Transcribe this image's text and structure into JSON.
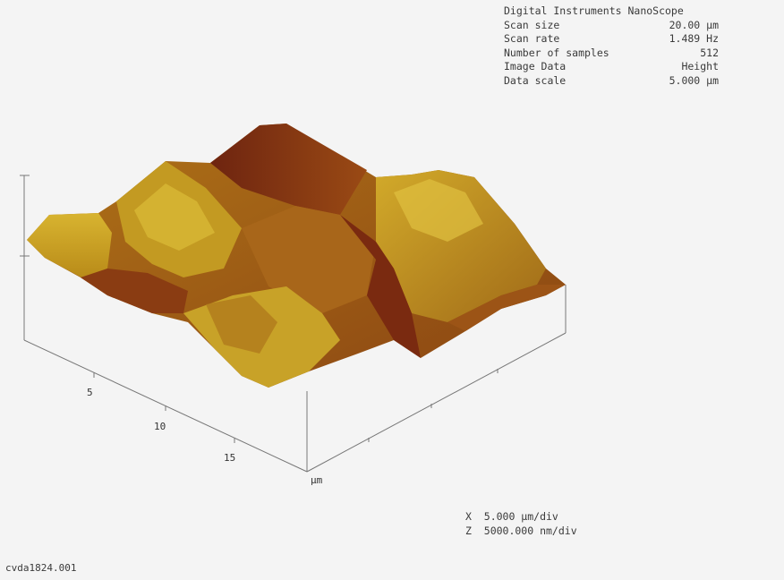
{
  "info": {
    "title": "Digital Instruments NanoScope",
    "rows": [
      {
        "label": "Scan size",
        "value": "20.00 µm"
      },
      {
        "label": "Scan rate",
        "value": "1.489 Hz"
      },
      {
        "label": "Number of samples",
        "value": "512"
      },
      {
        "label": "Image Data",
        "value": "Height"
      },
      {
        "label": "Data scale",
        "value": "5.000 µm"
      }
    ]
  },
  "axis": {
    "x_ticks": [
      "5",
      "10",
      "15"
    ],
    "unit": "µm"
  },
  "scale": {
    "x": "X  5.000 µm/div",
    "z": "Z  5000.000 nm/div"
  },
  "filename": "cvda1824.001",
  "colors": {
    "background": "#f4f4f4",
    "surface_light": "#c8a020",
    "surface_dark": "#7a2a10",
    "axis": "#777777"
  }
}
